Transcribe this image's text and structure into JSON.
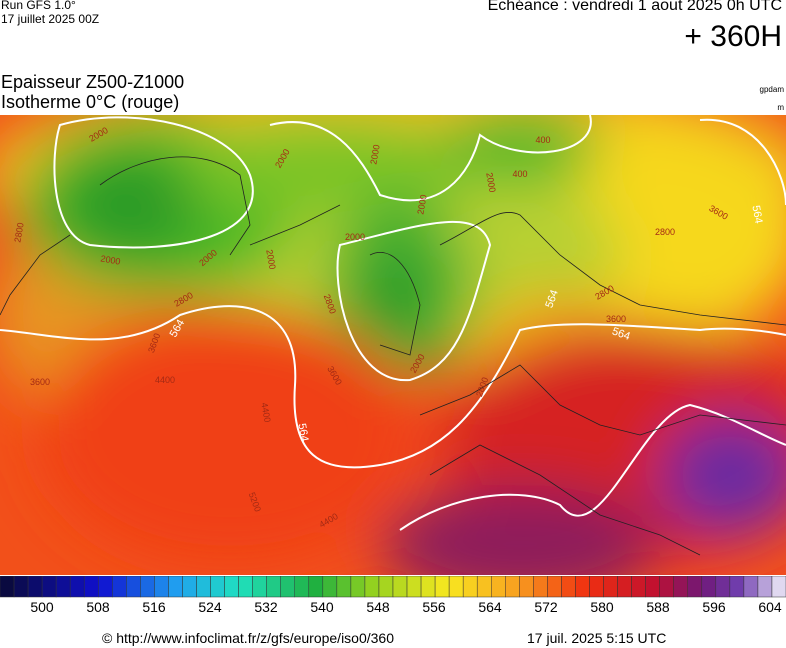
{
  "header": {
    "run": "Run GFS 1.0°",
    "run_date": "17 juillet 2025 00Z",
    "echeance": "Echéance : vendredi 1 aout 2025 0h UTC",
    "lead": "+ 360H"
  },
  "title": {
    "line1": "Epaisseur Z500-Z1000",
    "line2": "Isotherme 0°C (rouge)",
    "unit1": "gpdam",
    "unit2": "m"
  },
  "map": {
    "thickness_labels": [
      "564",
      "564",
      "564",
      "564",
      "564"
    ],
    "isotherm_labels": [
      "2000",
      "2000",
      "2000",
      "2000",
      "2000",
      "2000",
      "2000",
      "2000",
      "2000",
      "2000",
      "400",
      "400",
      "2800",
      "2800",
      "2800",
      "2800",
      "2800",
      "2800",
      "3600",
      "3600",
      "3600",
      "3600",
      "3600",
      "4400",
      "4400",
      "4400",
      "5200"
    ]
  },
  "colorbar": {
    "ticks": [
      500,
      508,
      516,
      524,
      532,
      540,
      548,
      556,
      564,
      572,
      580,
      588,
      596,
      604
    ]
  },
  "footer": {
    "source": "© http://www.infoclimat.fr/z/gfs/europe/iso0/360",
    "generated": "17 juil. 2025  5:15 UTC"
  }
}
